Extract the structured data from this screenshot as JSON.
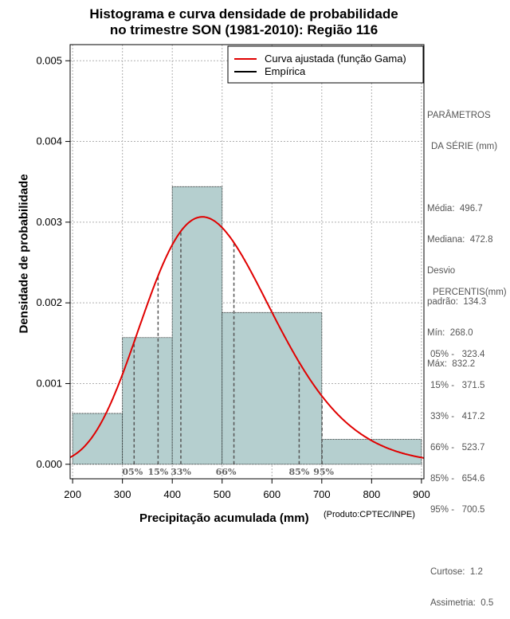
{
  "chart_data": {
    "type": "bar",
    "title_line1": "Histograma e curva densidade de probabilidade",
    "title_line2": "no trimestre SON (1981-2010): Região 116",
    "xlabel": "Precipitação acumulada (mm)",
    "ylabel": "Densidade de probabilidade",
    "credit": "(Produto:CPTEC/INPE)",
    "xlim": [
      195,
      905
    ],
    "ylim": [
      -0.00018,
      0.0052
    ],
    "xticks": [
      200,
      300,
      400,
      500,
      600,
      700,
      800,
      900
    ],
    "yticks": [
      0.0,
      0.001,
      0.002,
      0.003,
      0.004,
      0.005
    ],
    "ytick_labels": [
      "0.000",
      "0.001",
      "0.002",
      "0.003",
      "0.004",
      "0.005"
    ],
    "bins": [
      {
        "from": 200,
        "to": 300,
        "density": 0.00063
      },
      {
        "from": 300,
        "to": 400,
        "density": 0.00157
      },
      {
        "from": 400,
        "to": 500,
        "density": 0.00344
      },
      {
        "from": 500,
        "to": 700,
        "density": 0.00188
      },
      {
        "from": 700,
        "to": 900,
        "density": 0.00031
      }
    ],
    "bar_fill": "#b5cfcf",
    "curve_color": "#e00000",
    "gamma_mean": 496.7,
    "gamma_sd": 134.3,
    "legend": [
      {
        "label": "Curva ajustada (função Gama)",
        "color": "#e00000"
      },
      {
        "label": "Empírica",
        "color": "#000000"
      }
    ],
    "percentile_lines": [
      {
        "label": "05%",
        "value": 323.4
      },
      {
        "label": "15%",
        "value": 371.5
      },
      {
        "label": "33%",
        "value": 417.2
      },
      {
        "label": "66%",
        "value": 523.7
      },
      {
        "label": "85%",
        "value": 654.6
      },
      {
        "label": "95%",
        "value": 700.5
      }
    ]
  },
  "params": {
    "header1": "PARÂMETROS",
    "header2": "DA SÉRIE (mm)",
    "rows": [
      "Média:  496.7",
      "Mediana:  472.8",
      "Desvio",
      "padrão:  134.3",
      "Mín:  268.0",
      "Máx:  832.2"
    ]
  },
  "percentis": {
    "header": "PERCENTIS(mm)",
    "rows": [
      "05% -   323.4",
      "15% -   371.5",
      "33% -   417.2",
      "66% -   523.7",
      "85% -   654.6",
      "95% -   700.5"
    ],
    "curtose": "Curtose:  1.2",
    "assimetria": "Assimetria:  0.5"
  }
}
